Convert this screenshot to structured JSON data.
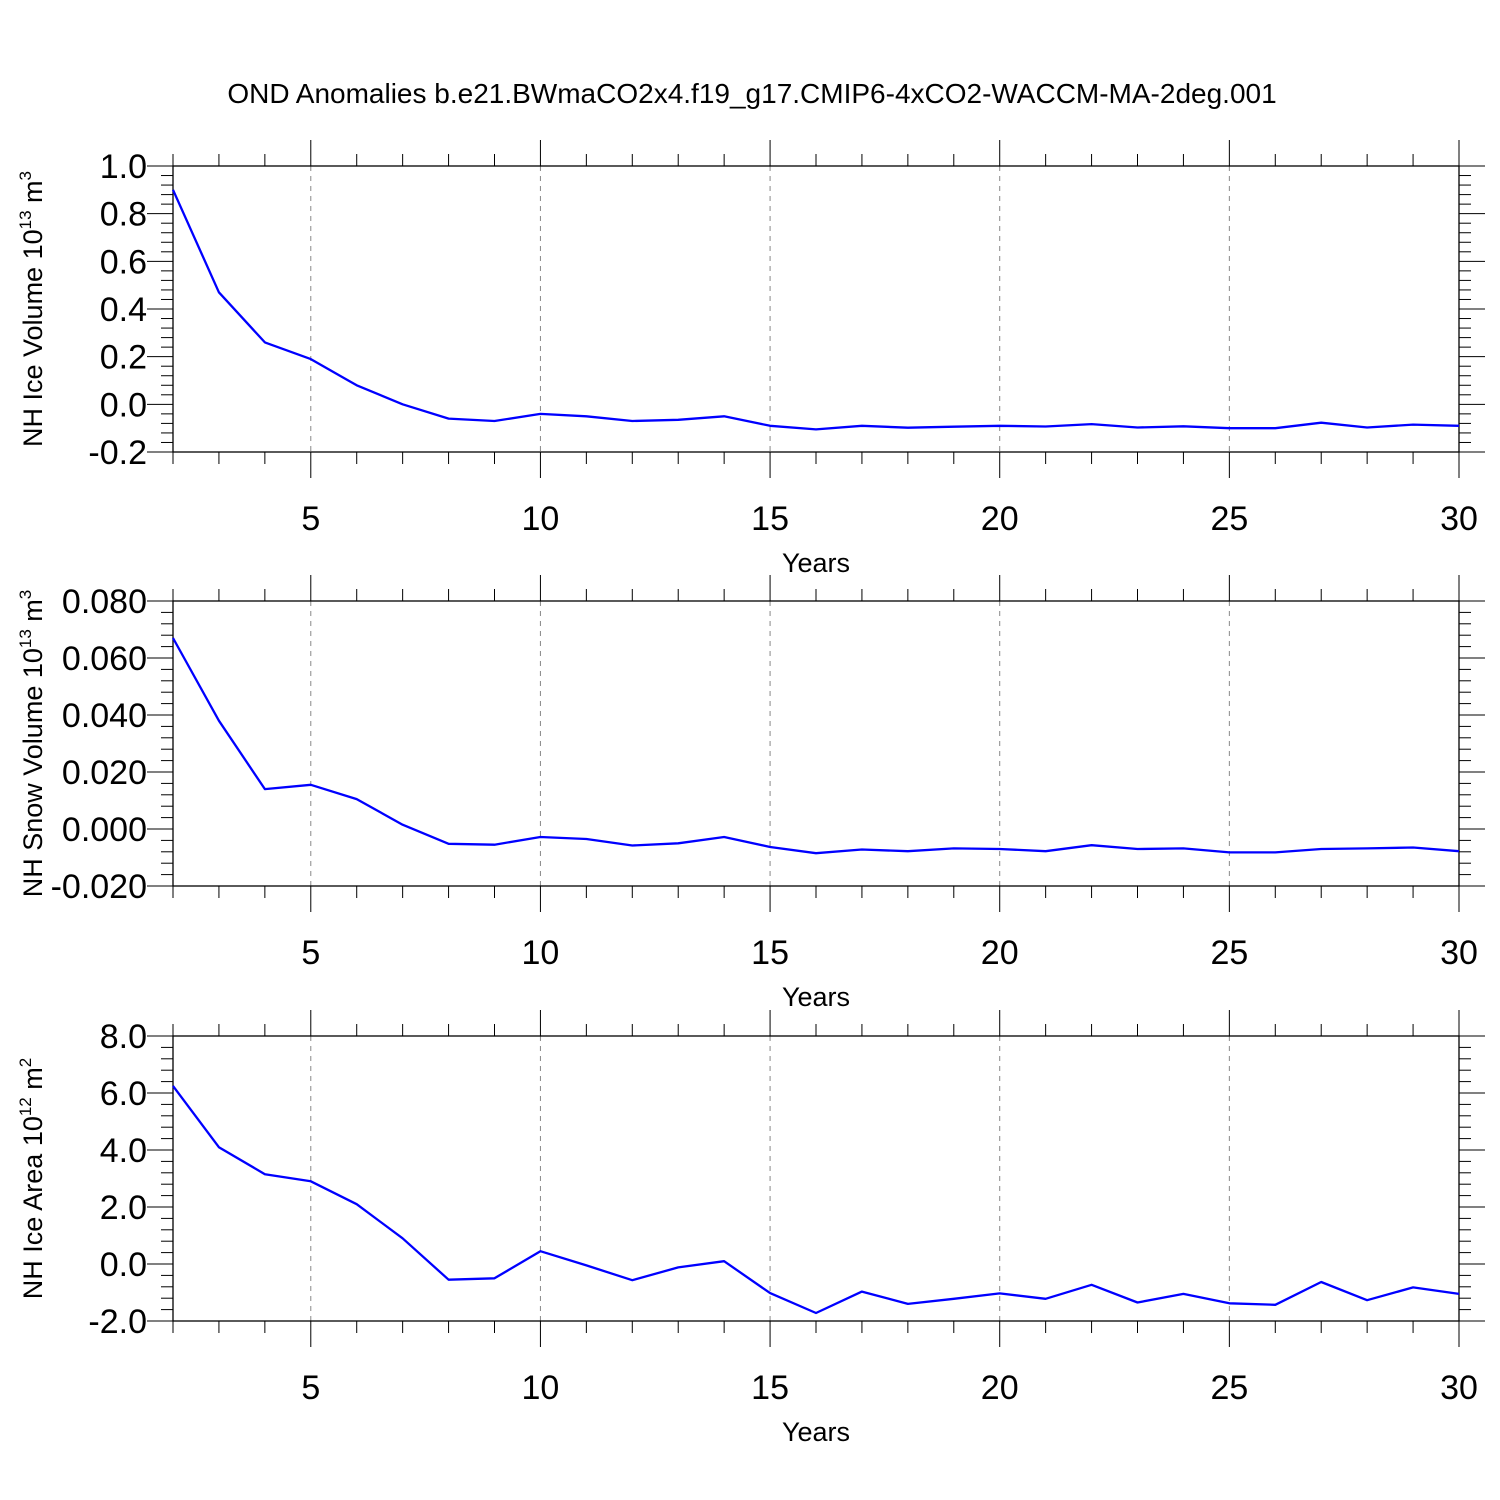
{
  "title": "OND Anomalies b.e21.BWmaCO2x4.f19_g17.CMIP6-4xCO2-WACCM-MA-2deg.001",
  "line_color": "#0000ff",
  "chart_data": [
    {
      "type": "line",
      "ylabel": {
        "main": "NH Ice Volume 10",
        "exp": "13",
        "unit": " m",
        "unit_exp": "3"
      },
      "xlabel": "Years",
      "xlim": [
        2,
        30
      ],
      "ylim": [
        -0.2,
        1.0
      ],
      "x_ticks": [
        5,
        10,
        15,
        20,
        25,
        30
      ],
      "y_ticks": [
        -0.2,
        0.0,
        0.2,
        0.4,
        0.6,
        0.8,
        1.0
      ],
      "y_tick_labels": [
        "-0.2",
        "0.0",
        "0.2",
        "0.4",
        "0.6",
        "0.8",
        "1.0"
      ],
      "grid_x": [
        5,
        10,
        15,
        20,
        25
      ],
      "x": [
        2,
        3,
        4,
        5,
        6,
        7,
        8,
        9,
        10,
        11,
        12,
        13,
        14,
        15,
        16,
        17,
        18,
        19,
        20,
        21,
        22,
        23,
        24,
        25,
        26,
        27,
        28,
        29,
        30
      ],
      "values": [
        0.9,
        0.47,
        0.26,
        0.19,
        0.08,
        0.0,
        -0.06,
        -0.07,
        -0.04,
        -0.05,
        -0.07,
        -0.065,
        -0.05,
        -0.09,
        -0.105,
        -0.09,
        -0.098,
        -0.094,
        -0.09,
        -0.093,
        -0.083,
        -0.097,
        -0.092,
        -0.1,
        -0.1,
        -0.077,
        -0.097,
        -0.085,
        -0.09
      ]
    },
    {
      "type": "line",
      "ylabel": {
        "main": "NH Snow Volume 10",
        "exp": "13",
        "unit": " m",
        "unit_exp": "3"
      },
      "xlabel": "Years",
      "xlim": [
        2,
        30
      ],
      "ylim": [
        -0.02,
        0.08
      ],
      "x_ticks": [
        5,
        10,
        15,
        20,
        25,
        30
      ],
      "y_ticks": [
        -0.02,
        0.0,
        0.02,
        0.04,
        0.06,
        0.08
      ],
      "y_tick_labels": [
        "-0.020",
        "0.000",
        "0.020",
        "0.040",
        "0.060",
        "0.080"
      ],
      "grid_x": [
        5,
        10,
        15,
        20,
        25
      ],
      "x": [
        2,
        3,
        4,
        5,
        6,
        7,
        8,
        9,
        10,
        11,
        12,
        13,
        14,
        15,
        16,
        17,
        18,
        19,
        20,
        21,
        22,
        23,
        24,
        25,
        26,
        27,
        28,
        29,
        30
      ],
      "values": [
        0.067,
        0.038,
        0.014,
        0.0155,
        0.0105,
        0.0015,
        -0.0052,
        -0.0055,
        -0.0028,
        -0.0035,
        -0.0058,
        -0.005,
        -0.0028,
        -0.0063,
        -0.0085,
        -0.0072,
        -0.0078,
        -0.0068,
        -0.007,
        -0.0078,
        -0.0057,
        -0.007,
        -0.0068,
        -0.0082,
        -0.0082,
        -0.007,
        -0.0068,
        -0.0065,
        -0.0078
      ]
    },
    {
      "type": "line",
      "ylabel": {
        "main": "NH Ice Area 10",
        "exp": "12",
        "unit": " m",
        "unit_exp": "2"
      },
      "xlabel": "Years",
      "xlim": [
        2,
        30
      ],
      "ylim": [
        -2.0,
        8.0
      ],
      "x_ticks": [
        5,
        10,
        15,
        20,
        25,
        30
      ],
      "y_ticks": [
        -2.0,
        0.0,
        2.0,
        4.0,
        6.0,
        8.0
      ],
      "y_tick_labels": [
        "-2.0",
        "0.0",
        "2.0",
        "4.0",
        "6.0",
        "8.0"
      ],
      "grid_x": [
        5,
        10,
        15,
        20,
        25
      ],
      "x": [
        2,
        3,
        4,
        5,
        6,
        7,
        8,
        9,
        10,
        11,
        12,
        13,
        14,
        15,
        16,
        17,
        18,
        19,
        20,
        21,
        22,
        23,
        24,
        25,
        26,
        27,
        28,
        29,
        30
      ],
      "values": [
        6.25,
        4.1,
        3.15,
        2.9,
        2.1,
        0.9,
        -0.55,
        -0.5,
        0.45,
        -0.05,
        -0.57,
        -0.12,
        0.1,
        -1.02,
        -1.72,
        -0.97,
        -1.4,
        -1.22,
        -1.03,
        -1.22,
        -0.73,
        -1.35,
        -1.05,
        -1.38,
        -1.43,
        -0.63,
        -1.27,
        -0.82,
        -1.05
      ]
    }
  ]
}
